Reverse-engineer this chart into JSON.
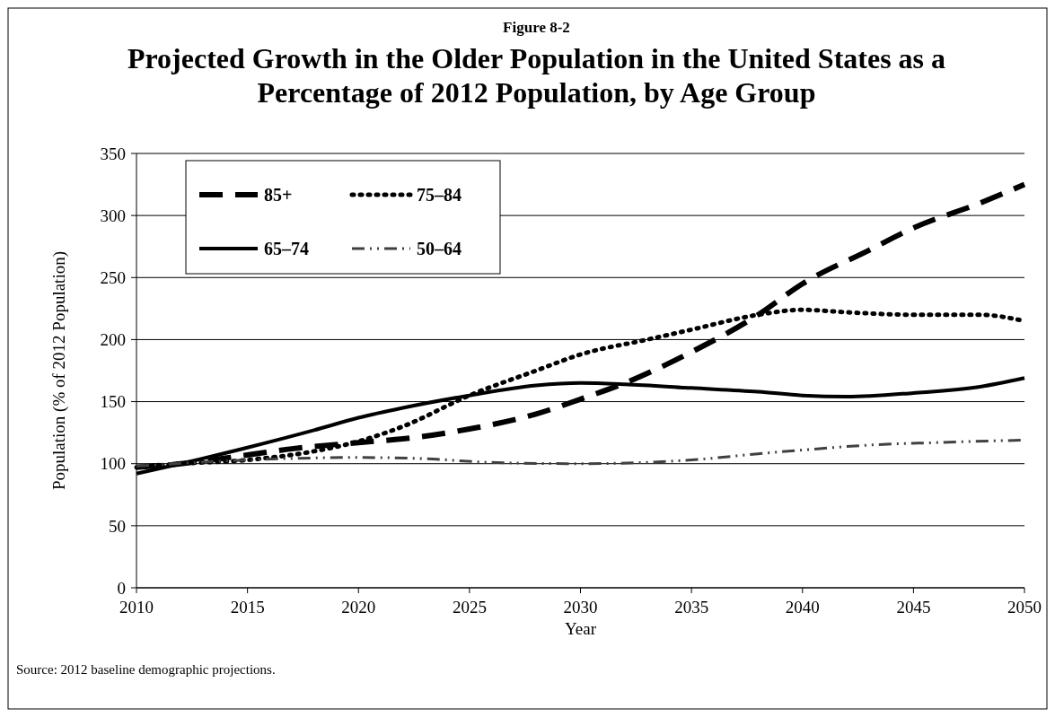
{
  "chart_data": {
    "type": "line",
    "subtitle": "Figure 8-2",
    "title": "Projected Growth in the Older Population in the United States as a\nPercentage of 2012 Population, by Age Group",
    "xlabel": "Year",
    "ylabel": "Population (% of 2012 Population)",
    "xlim": [
      2010,
      2050
    ],
    "xticks": [
      2010,
      2015,
      2020,
      2025,
      2030,
      2035,
      2040,
      2045,
      2050
    ],
    "ylim": [
      0,
      350
    ],
    "yticks": [
      0,
      50,
      100,
      150,
      200,
      250,
      300,
      350
    ],
    "grid": "y",
    "legend": "top left",
    "series": [
      {
        "name": "85+",
        "color": "#000000",
        "line_style": "dashed",
        "x": [
          2010,
          2012,
          2015,
          2017,
          2020,
          2022,
          2025,
          2028,
          2030,
          2032,
          2035,
          2038,
          2040,
          2043,
          2045,
          2048,
          2050
        ],
        "values": [
          97,
          100,
          107,
          112,
          117,
          120,
          128,
          140,
          152,
          165,
          190,
          220,
          245,
          272,
          290,
          310,
          325
        ]
      },
      {
        "name": "75–84",
        "color": "#000000",
        "line_style": "dotted",
        "x": [
          2010,
          2012,
          2015,
          2018,
          2020,
          2022,
          2025,
          2028,
          2030,
          2033,
          2035,
          2038,
          2040,
          2042,
          2045,
          2048,
          2050
        ],
        "values": [
          97,
          100,
          103,
          110,
          118,
          130,
          155,
          175,
          188,
          200,
          208,
          220,
          224,
          222,
          220,
          220,
          215
        ]
      },
      {
        "name": "65–74",
        "color": "#000000",
        "line_style": "solid",
        "x": [
          2010,
          2012,
          2015,
          2018,
          2020,
          2022,
          2025,
          2028,
          2030,
          2032,
          2035,
          2038,
          2040,
          2042,
          2045,
          2048,
          2050
        ],
        "values": [
          92,
          100,
          113,
          127,
          137,
          145,
          155,
          163,
          165,
          164,
          161,
          158,
          155,
          154,
          157,
          162,
          169
        ]
      },
      {
        "name": "50–64",
        "color": "#404040",
        "line_style": "dashdot",
        "x": [
          2010,
          2015,
          2020,
          2023,
          2026,
          2030,
          2035,
          2038,
          2040,
          2043,
          2046,
          2050
        ],
        "values": [
          98,
          103,
          105,
          104,
          101,
          100,
          103,
          108,
          111,
          115,
          117,
          119
        ]
      }
    ],
    "annotations": [
      "Source: 2012 baseline demographic projections."
    ]
  }
}
